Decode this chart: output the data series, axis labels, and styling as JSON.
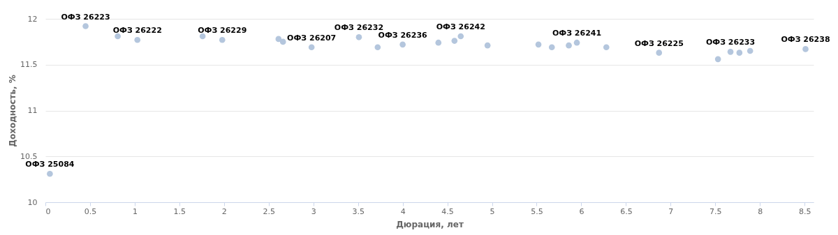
{
  "chart_data": {
    "type": "scatter",
    "xlabel": "Дюрация, лет",
    "ylabel": "Доходность, %",
    "x": [
      0.05,
      0.45,
      0.81,
      1.03,
      1.76,
      1.98,
      2.61,
      2.66,
      2.98,
      3.51,
      3.72,
      4.0,
      4.4,
      4.58,
      4.65,
      4.95,
      5.52,
      5.67,
      5.86,
      5.95,
      6.28,
      6.87,
      7.53,
      7.67,
      7.77,
      7.89,
      8.51
    ],
    "series": [
      {
        "color": "#b4c6dd",
        "values": [
          10.31,
          11.92,
          11.81,
          11.77,
          11.81,
          11.77,
          11.78,
          11.75,
          11.69,
          11.8,
          11.69,
          11.72,
          11.74,
          11.76,
          11.81,
          11.71,
          11.72,
          11.69,
          11.71,
          11.74,
          11.69,
          11.63,
          11.56,
          11.64,
          11.63,
          11.65,
          11.67
        ]
      }
    ],
    "xlim": [
      0,
      8.6
    ],
    "ylim": [
      10,
      12
    ],
    "xticks": [
      0,
      0.5,
      1,
      1.5,
      2,
      2.5,
      3,
      3.5,
      4,
      4.5,
      5,
      5.5,
      6,
      6.5,
      7,
      7.5,
      8,
      8.5
    ],
    "yticks": [
      10,
      10.5,
      11,
      11.5,
      12
    ],
    "grid": "y",
    "marker": "circle",
    "annotations": [
      {
        "text": "ОФЗ 25084",
        "x": 0.05,
        "y": 10.31
      },
      {
        "text": "ОФЗ 26223",
        "x": 0.45,
        "y": 11.92
      },
      {
        "text": "ОФЗ 26222",
        "x": 1.03,
        "y": 11.77
      },
      {
        "text": "ОФЗ 26229",
        "x": 1.98,
        "y": 11.77
      },
      {
        "text": "ОФЗ 26207",
        "x": 2.98,
        "y": 11.69
      },
      {
        "text": "ОФЗ 26232",
        "x": 3.51,
        "y": 11.8
      },
      {
        "text": "ОФЗ 26236",
        "x": 4.0,
        "y": 11.72
      },
      {
        "text": "ОФЗ 26242",
        "x": 4.65,
        "y": 11.81
      },
      {
        "text": "ОФЗ 26241",
        "x": 5.95,
        "y": 11.74
      },
      {
        "text": "ОФЗ 26225",
        "x": 6.87,
        "y": 11.63
      },
      {
        "text": "ОФЗ 26233",
        "x": 7.67,
        "y": 11.64
      },
      {
        "text": "ОФЗ 26238",
        "x": 8.51,
        "y": 11.67
      }
    ]
  }
}
